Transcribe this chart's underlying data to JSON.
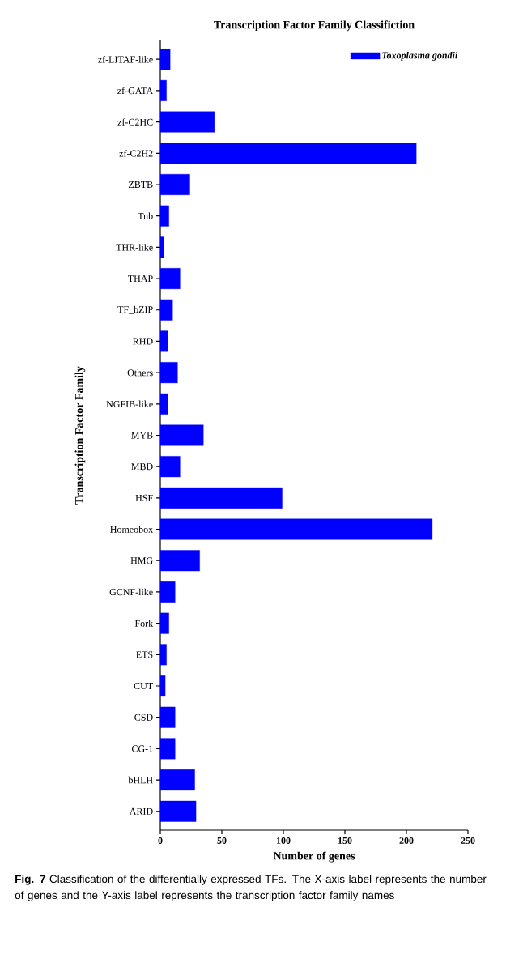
{
  "chart_data": {
    "type": "bar",
    "orientation": "horizontal",
    "title": "Transcription Factor Family Classifiction",
    "xlabel": "Number of genes",
    "ylabel": "Transcription Factor Family",
    "categories": [
      "zf-LITAF-like",
      "zf-GATA",
      "zf-C2HC",
      "zf-C2H2",
      "ZBTB",
      "Tub",
      "THR-like",
      "THAP",
      "TF_bZIP",
      "RHD",
      "Others",
      "NGFIB-like",
      "MYB",
      "MBD",
      "HSF",
      "Homeobox",
      "HMG",
      "GCNF-like",
      "Fork",
      "ETS",
      "CUT",
      "CSD",
      "CG-1",
      "bHLH",
      "ARID"
    ],
    "series": [
      {
        "name": "Toxoplasma gondii",
        "color": "#0000ff",
        "values": [
          8,
          5,
          44,
          208,
          24,
          7,
          3,
          16,
          10,
          6,
          14,
          6,
          35,
          16,
          99,
          221,
          32,
          12,
          7,
          5,
          4,
          12,
          12,
          28,
          29
        ]
      }
    ],
    "xlim": [
      0,
      250
    ],
    "xticks": [
      0,
      50,
      100,
      150,
      200,
      250
    ],
    "legend": "top right",
    "annotations": [
      "**Fig. 7** Classification of the differentially expressed TFs. The X-axis label represents the number of genes and the Y-axis label represents the transcription factor family names"
    ]
  }
}
